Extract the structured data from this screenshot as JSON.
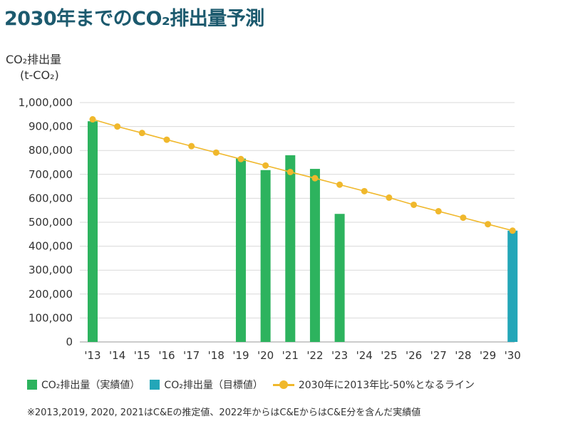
{
  "title": "2030年までのCO₂排出量予測",
  "ylabel_line1": "CO₂排出量",
  "ylabel_line2": "(t-CO₂)",
  "legend": {
    "actual": "CO₂排出量（実績値）",
    "target": "CO₂排出量（目標値）",
    "line": "2030年に2013年比-50%となるライン"
  },
  "footnote": "※2013,2019, 2020, 2021はC&Eの推定値、2022年からはC&EからはC&E分を含んだ実績値",
  "colors": {
    "actual": "#2db35e",
    "target": "#23a6b8",
    "line": "#f0b82c",
    "title": "#1c5a6e",
    "grid": "#d9d9d9"
  },
  "chart_data": {
    "type": "bar",
    "categories": [
      "'13",
      "'14",
      "'15",
      "'16",
      "'17",
      "'18",
      "'19",
      "'20",
      "'21",
      "'22",
      "'23",
      "'24",
      "'25",
      "'26",
      "'27",
      "'28",
      "'29",
      "'30"
    ],
    "y_ticks": [
      "0",
      "100,000",
      "200,000",
      "300,000",
      "400,000",
      "500,000",
      "600,000",
      "700,000",
      "800,000",
      "900,000",
      "1,000,000"
    ],
    "ylim": [
      0,
      1000000
    ],
    "grid": true,
    "series": [
      {
        "type": "bar",
        "values": [
          922000,
          null,
          null,
          null,
          null,
          null,
          766000,
          718000,
          780000,
          723000,
          535000,
          null,
          null,
          null,
          null,
          null,
          null,
          null
        ]
      },
      {
        "type": "bar",
        "values": [
          null,
          null,
          null,
          null,
          null,
          null,
          null,
          null,
          null,
          null,
          null,
          null,
          null,
          null,
          null,
          null,
          null,
          465000
        ]
      },
      {
        "type": "line",
        "values": [
          930000,
          900000,
          873000,
          845000,
          818000,
          791000,
          764000,
          737000,
          710000,
          684000,
          657000,
          630000,
          603000,
          573000,
          546000,
          519000,
          492000,
          465000
        ]
      }
    ]
  }
}
